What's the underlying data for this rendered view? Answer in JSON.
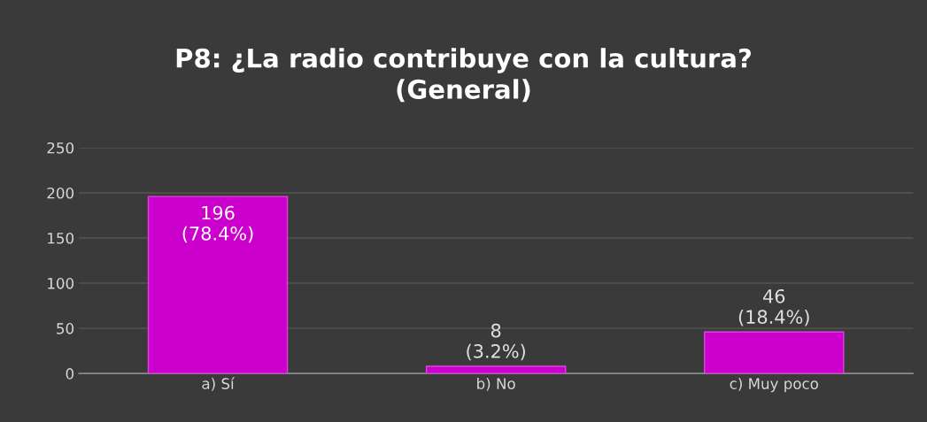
{
  "chart_data": {
    "type": "bar",
    "title": "P8: ¿La radio contribuye con la cultura?\n(General)",
    "categories": [
      "a) Sí",
      "b) No",
      "c) Muy poco"
    ],
    "values": [
      196,
      8,
      46
    ],
    "color": "#cc00cc",
    "value_labels": [
      "196\n(78.4%)",
      "8\n(3.2%)",
      "46\n(18.4%)"
    ],
    "ylim": [
      0,
      250
    ],
    "yticks": [
      0,
      50,
      100,
      150,
      200,
      250
    ],
    "grid": "y",
    "legend": false
  }
}
